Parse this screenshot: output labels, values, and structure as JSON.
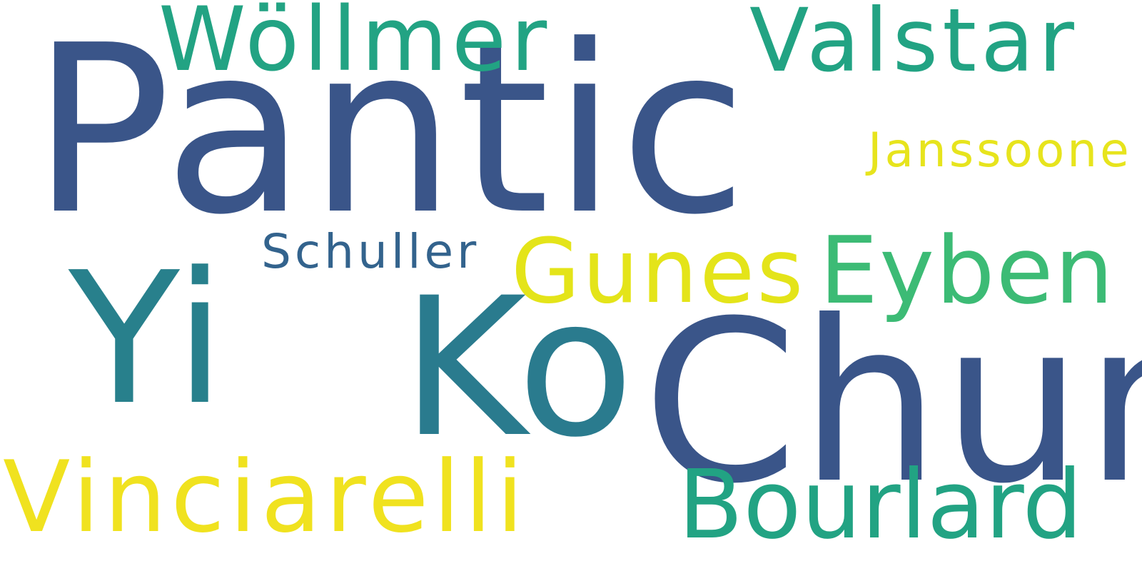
{
  "cloud": {
    "background_color": "#ffffff",
    "words": [
      {
        "text": "Pantic",
        "color": "#3a5589"
      },
      {
        "text": "Yi",
        "color": "#28808c"
      },
      {
        "text": "Ko",
        "color": "#2a7b8e"
      },
      {
        "text": "Chun",
        "color": "#3a5589"
      },
      {
        "text": "Vinciarelli",
        "color": "#f0e21f"
      },
      {
        "text": "Bourlard",
        "color": "#22a383"
      },
      {
        "text": "Gunes",
        "color": "#e4e419"
      },
      {
        "text": "Eyben",
        "color": "#3cbb75"
      },
      {
        "text": "Wöllmer",
        "color": "#22a383"
      },
      {
        "text": "Valstar",
        "color": "#22a383"
      },
      {
        "text": "Janssoone",
        "color": "#e7e41d"
      },
      {
        "text": "Schuller",
        "color": "#33638d"
      }
    ]
  }
}
